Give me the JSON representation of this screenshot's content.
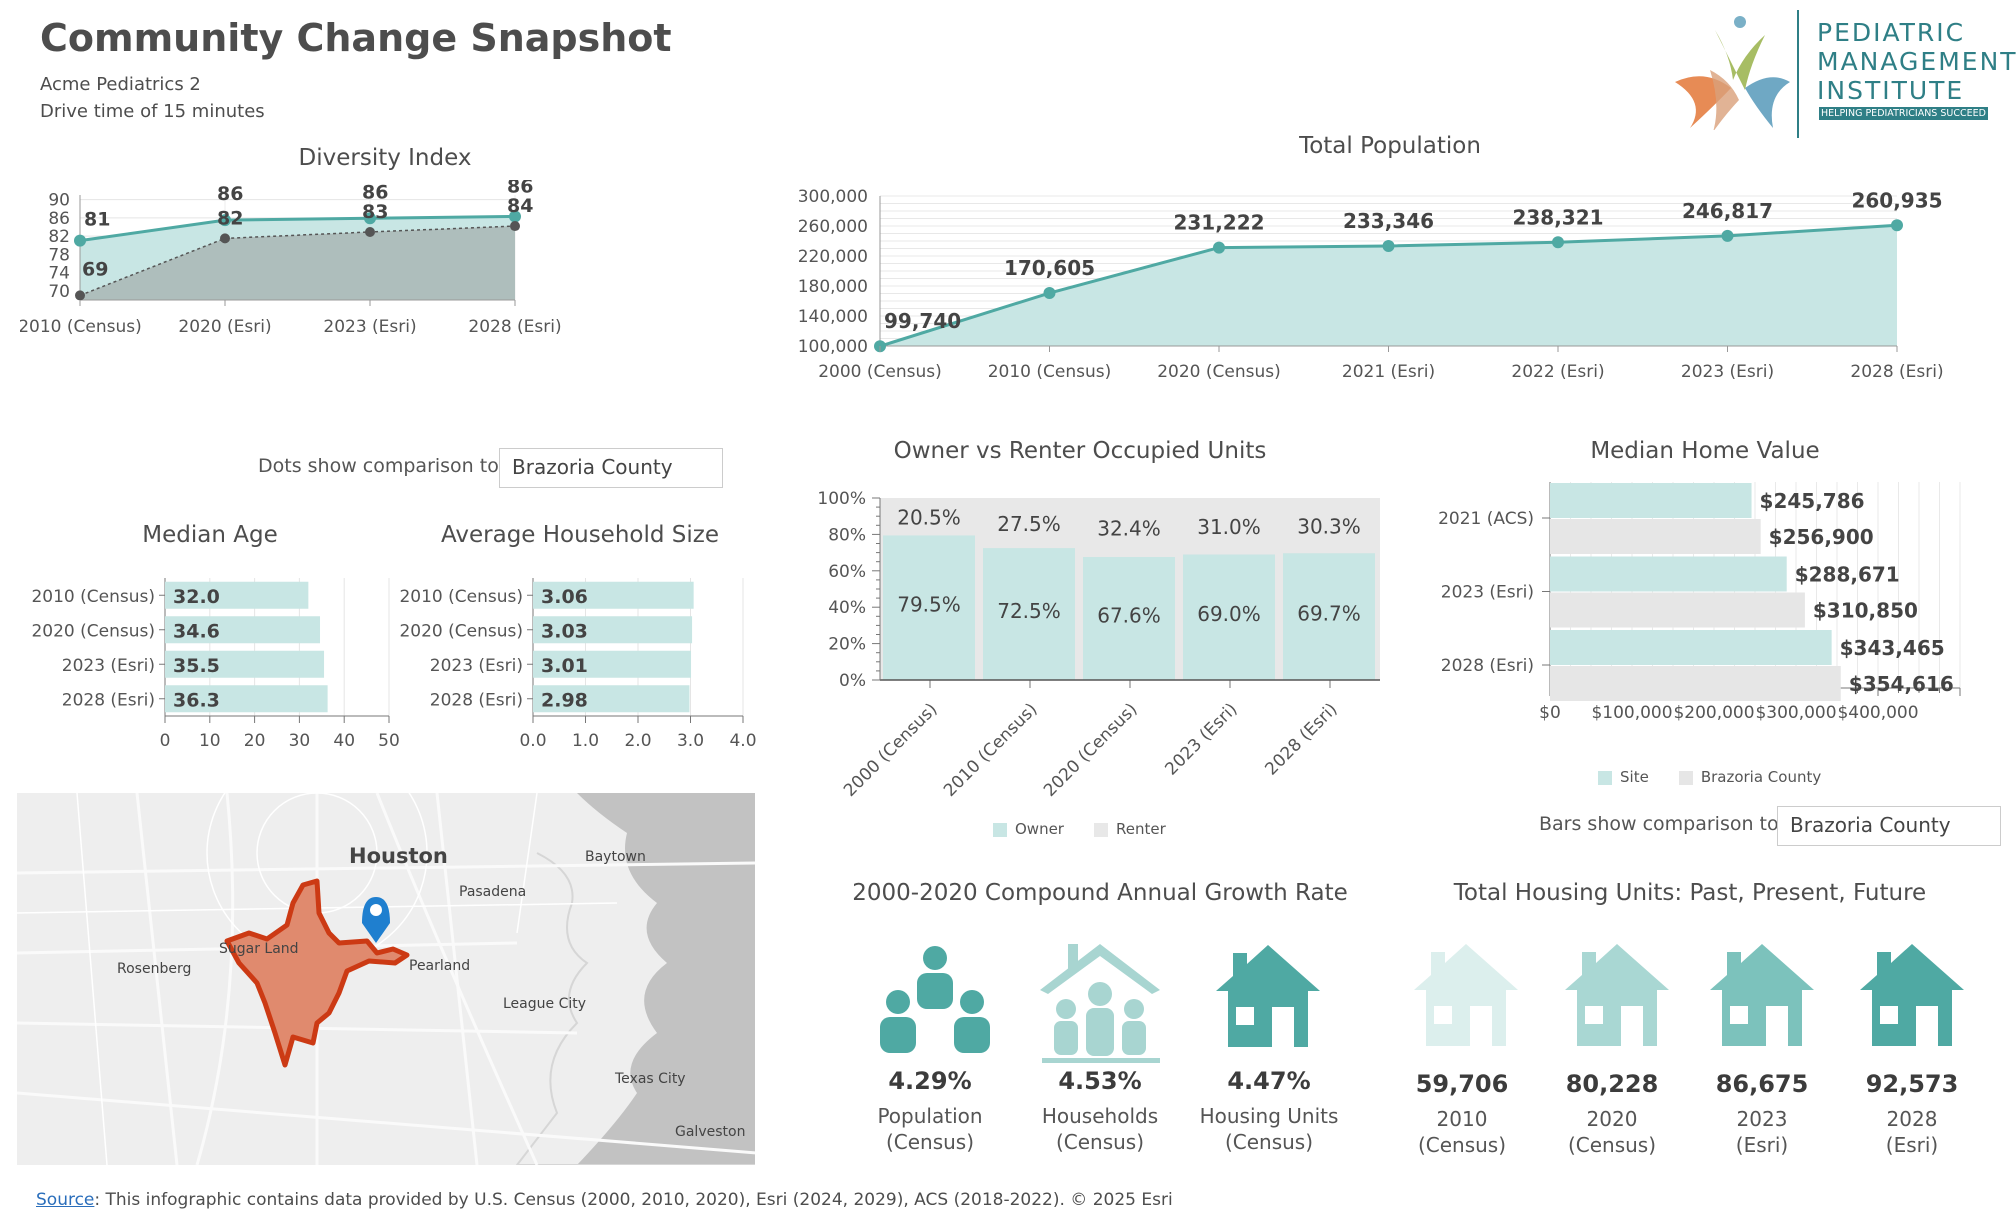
{
  "header": {
    "title": "Community Change Snapshot",
    "site_name": "Acme Pediatrics 2",
    "drive_time": "Drive time of 15 minutes"
  },
  "logo": {
    "line1": "PEDIATRIC",
    "line2": "MANAGEMENT",
    "line3": "INSTITUTE",
    "tagline": "HELPING PEDIATRICIANS SUCCEED"
  },
  "comparison": {
    "dots_label": "Dots show comparison to",
    "dots_value": "Brazoria County",
    "bars_label": "Bars show comparison to",
    "bars_value": "Brazoria County"
  },
  "colors": {
    "teal": "#4fa9a3",
    "teal_light": "#c8e6e4",
    "gray_fill": "#a9b6b5",
    "renter": "#e8e8e8",
    "county": "#e6e6e6",
    "boundary": "#cc3a14"
  },
  "map": {
    "labels": [
      "Houston",
      "Pasadena",
      "Baytown",
      "Sugar Land",
      "Rosenberg",
      "Pearland",
      "League City",
      "Texas City",
      "Galveston"
    ]
  },
  "growth": {
    "title": "2000-2020 Compound Annual Growth Rate",
    "items": [
      {
        "value": "4.29%",
        "line1": "Population",
        "line2": "(Census)",
        "icon": "population-icon"
      },
      {
        "value": "4.53%",
        "line1": "Households",
        "line2": "(Census)",
        "icon": "households-icon"
      },
      {
        "value": "4.47%",
        "line1": "Housing Units",
        "line2": "(Census)",
        "icon": "housing-units-icon"
      }
    ]
  },
  "housing_units": {
    "title": "Total Housing Units: Past, Present, Future",
    "items": [
      {
        "value": "59,706",
        "line1": "2010",
        "line2": "(Census)"
      },
      {
        "value": "80,228",
        "line1": "2020",
        "line2": "(Census)"
      },
      {
        "value": "86,675",
        "line1": "2023",
        "line2": "(Esri)"
      },
      {
        "value": "92,573",
        "line1": "2028",
        "line2": "(Esri)"
      }
    ]
  },
  "footer": {
    "source_link": "Source",
    "source_text": ": This infographic contains data provided by U.S. Census (2000, 2010, 2020), Esri (2024, 2029), ACS (2018-2022). © 2025 Esri"
  },
  "chart_data": [
    {
      "id": "diversity",
      "type": "area",
      "title": "Diversity Index",
      "categories": [
        "2010 (Census)",
        "2020 (Esri)",
        "2023 (Esri)",
        "2028 (Esri)"
      ],
      "series": [
        {
          "name": "Site",
          "values": [
            81,
            86,
            86,
            86
          ]
        },
        {
          "name": "Brazoria County",
          "values": [
            69,
            82,
            83,
            84
          ]
        }
      ],
      "plotted": {
        "Site": [
          81,
          85.5,
          85.9,
          86.3
        ],
        "Brazoria County": [
          69,
          81.5,
          82.9,
          84.2
        ]
      },
      "ylim": [
        68,
        91
      ],
      "yticks": [
        "70",
        "74",
        "78",
        "82",
        "86",
        "90"
      ]
    },
    {
      "id": "population",
      "type": "area",
      "title": "Total Population",
      "categories": [
        "2000 (Census)",
        "2010 (Census)",
        "2020 (Census)",
        "2021 (Esri)",
        "2022 (Esri)",
        "2023 (Esri)",
        "2028 (Esri)"
      ],
      "values": [
        99740,
        170605,
        231222,
        233346,
        238321,
        246817,
        260935
      ],
      "labels": [
        "99,740",
        "170,605",
        "231,222",
        "233,346",
        "238,321",
        "246,817",
        "260,935"
      ],
      "ylim": [
        100000,
        300000
      ],
      "yticks": [
        "100,000",
        "140,000",
        "180,000",
        "220,000",
        "260,000",
        "300,000"
      ]
    },
    {
      "id": "median_age",
      "type": "bar",
      "title": "Median Age",
      "categories": [
        "2010 (Census)",
        "2020 (Census)",
        "2023 (Esri)",
        "2028 (Esri)"
      ],
      "values": [
        32.0,
        34.6,
        35.5,
        36.3
      ],
      "labels": [
        "32.0",
        "34.6",
        "35.5",
        "36.3"
      ],
      "xlim": [
        0,
        50
      ],
      "xticks": [
        "0",
        "10",
        "20",
        "30",
        "40",
        "50"
      ]
    },
    {
      "id": "household_size",
      "type": "bar",
      "title": "Average Household Size",
      "categories": [
        "2010 (Census)",
        "2020 (Census)",
        "2023 (Esri)",
        "2028 (Esri)"
      ],
      "values": [
        3.06,
        3.03,
        3.01,
        2.98
      ],
      "labels": [
        "3.06",
        "3.03",
        "3.01",
        "2.98"
      ],
      "xlim": [
        0,
        4
      ],
      "xticks": [
        "0.0",
        "1.0",
        "2.0",
        "3.0",
        "4.0"
      ]
    },
    {
      "id": "tenure",
      "type": "bar",
      "title": "Owner vs Renter Occupied Units",
      "categories": [
        "2000 (Census)",
        "2010 (Census)",
        "2020 (Census)",
        "2023 (Esri)",
        "2028 (Esri)"
      ],
      "series": [
        {
          "name": "Owner",
          "values": [
            79.5,
            72.5,
            67.6,
            69.0,
            69.7
          ],
          "labels": [
            "79.5%",
            "72.5%",
            "67.6%",
            "69.0%",
            "69.7%"
          ]
        },
        {
          "name": "Renter",
          "values": [
            20.5,
            27.5,
            32.4,
            31.0,
            30.3
          ],
          "labels": [
            "20.5%",
            "27.5%",
            "32.4%",
            "31.0%",
            "30.3%"
          ]
        }
      ],
      "ylim": [
        0,
        100
      ],
      "yticks": [
        "0%",
        "20%",
        "40%",
        "60%",
        "80%",
        "100%"
      ],
      "legend": [
        "Owner",
        "Renter"
      ]
    },
    {
      "id": "home_value",
      "type": "bar",
      "title": "Median Home Value",
      "categories": [
        "2021 (ACS)",
        "2023 (Esri)",
        "2028 (Esri)"
      ],
      "series": [
        {
          "name": "Site",
          "values": [
            245786,
            288671,
            343465
          ],
          "labels": [
            "$245,786",
            "$288,671",
            "$343,465"
          ]
        },
        {
          "name": "Brazoria County",
          "values": [
            256900,
            310850,
            354616
          ],
          "labels": [
            "$256,900",
            "$310,850",
            "$354,616"
          ]
        }
      ],
      "xlim": [
        0,
        500000
      ],
      "xticks": [
        "$0",
        "$100,000",
        "$200,000",
        "$300,000",
        "$400,000"
      ],
      "legend": [
        "Site",
        "Brazoria County"
      ]
    }
  ]
}
